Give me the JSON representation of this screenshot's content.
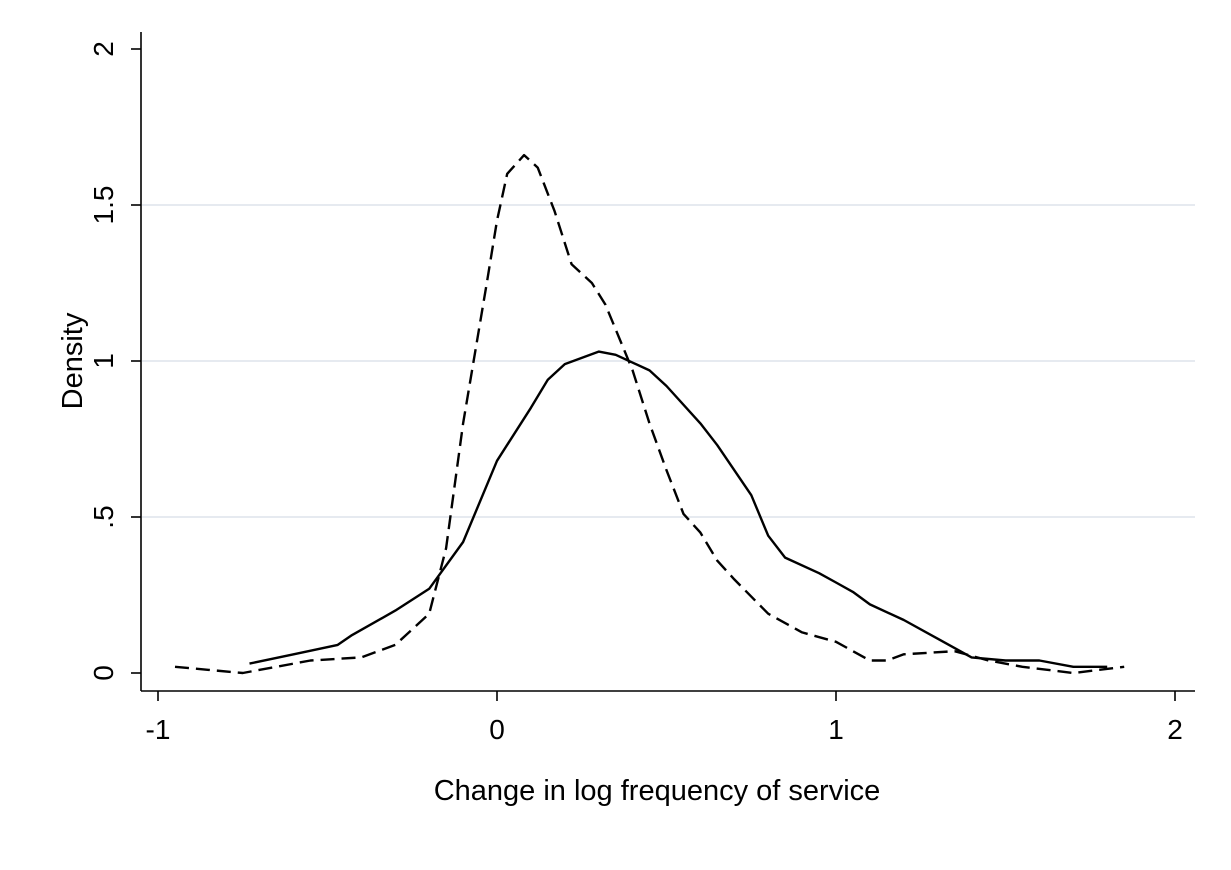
{
  "chart_data": {
    "type": "line",
    "xlabel": "Change in log frequency of service",
    "ylabel": "Density",
    "xlim": [
      -1,
      2
    ],
    "ylim": [
      0,
      2
    ],
    "x_ticks": [
      -1,
      0,
      1,
      2
    ],
    "x_tick_labels": [
      "-1",
      "0",
      "1",
      "2"
    ],
    "y_ticks": [
      0,
      0.5,
      1,
      1.5,
      2
    ],
    "y_tick_labels": [
      "0",
      ".5",
      "1",
      "1.5",
      "2"
    ],
    "grid": "horizontal",
    "series": [
      {
        "style": "solid",
        "color": "#000000",
        "x": [
          -0.73,
          -0.6,
          -0.47,
          -0.43,
          -0.3,
          -0.2,
          -0.1,
          0.0,
          0.1,
          0.15,
          0.2,
          0.3,
          0.35,
          0.45,
          0.5,
          0.6,
          0.65,
          0.75,
          0.8,
          0.85,
          0.95,
          1.0,
          1.05,
          1.1,
          1.2,
          1.3,
          1.4,
          1.5,
          1.6,
          1.7,
          1.8
        ],
        "y": [
          0.03,
          0.06,
          0.09,
          0.12,
          0.2,
          0.27,
          0.42,
          0.68,
          0.85,
          0.94,
          0.99,
          1.03,
          1.02,
          0.97,
          0.92,
          0.8,
          0.73,
          0.57,
          0.44,
          0.37,
          0.32,
          0.29,
          0.26,
          0.22,
          0.17,
          0.11,
          0.05,
          0.04,
          0.04,
          0.02,
          0.02
        ]
      },
      {
        "style": "dashed",
        "color": "#000000",
        "x": [
          -0.95,
          -0.85,
          -0.75,
          -0.55,
          -0.4,
          -0.3,
          -0.2,
          -0.15,
          -0.1,
          -0.03,
          0.0,
          0.03,
          0.08,
          0.12,
          0.17,
          0.22,
          0.28,
          0.32,
          0.4,
          0.45,
          0.5,
          0.55,
          0.6,
          0.65,
          0.7,
          0.8,
          0.9,
          1.0,
          1.1,
          1.15,
          1.2,
          1.35,
          1.45,
          1.55,
          1.7,
          1.85
        ],
        "y": [
          0.02,
          0.01,
          0.0,
          0.04,
          0.05,
          0.09,
          0.19,
          0.4,
          0.8,
          1.25,
          1.45,
          1.6,
          1.66,
          1.62,
          1.48,
          1.31,
          1.25,
          1.18,
          0.97,
          0.8,
          0.65,
          0.51,
          0.45,
          0.36,
          0.3,
          0.19,
          0.13,
          0.1,
          0.04,
          0.04,
          0.06,
          0.07,
          0.04,
          0.02,
          0.0,
          0.02
        ]
      }
    ]
  }
}
